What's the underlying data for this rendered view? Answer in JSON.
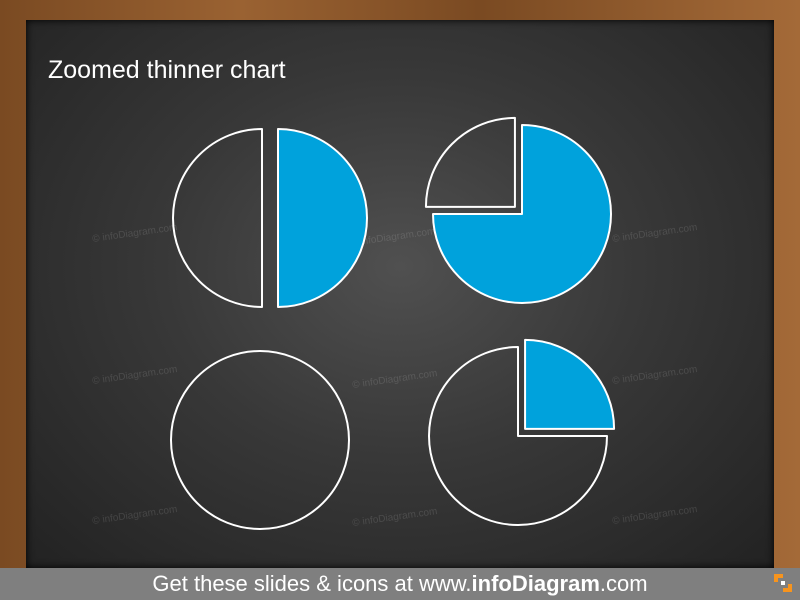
{
  "title": "Zoomed thinner chart",
  "watermark": "© infoDiagram.com",
  "banner": {
    "prefix": "Get these slides & icons at www.",
    "brand": "infoDiagram",
    "suffix": ".com"
  },
  "colors": {
    "fill": "#00a2dc",
    "stroke": "#ffffff",
    "board": "#333333",
    "banner": "#7f7f7f",
    "logo": "#f7941d"
  },
  "chart_data": [
    {
      "type": "pie",
      "slices": [
        {
          "value": 50,
          "filled": true,
          "exploded": true
        },
        {
          "value": 50,
          "filled": false,
          "exploded": true
        }
      ]
    },
    {
      "type": "pie",
      "slices": [
        {
          "value": 75,
          "filled": true,
          "exploded": false
        },
        {
          "value": 25,
          "filled": false,
          "exploded": true
        }
      ]
    },
    {
      "type": "pie",
      "slices": [
        {
          "value": 100,
          "filled": false,
          "exploded": false
        }
      ]
    },
    {
      "type": "pie",
      "slices": [
        {
          "value": 25,
          "filled": true,
          "exploded": true
        },
        {
          "value": 75,
          "filled": false,
          "exploded": false
        }
      ]
    }
  ]
}
